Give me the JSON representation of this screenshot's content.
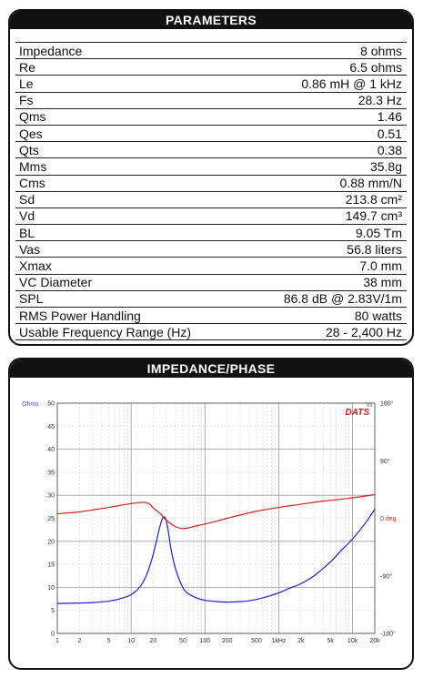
{
  "parameters": {
    "title": "PARAMETERS",
    "rows": [
      {
        "label": "Impedance",
        "value": "8 ohms"
      },
      {
        "label": "Re",
        "value": "6.5 ohms"
      },
      {
        "label": "Le",
        "value": "0.86 mH @ 1 kHz"
      },
      {
        "label": "Fs",
        "value": "28.3 Hz"
      },
      {
        "label": "Qms",
        "value": "1.46"
      },
      {
        "label": "Qes",
        "value": "0.51"
      },
      {
        "label": "Qts",
        "value": "0.38"
      },
      {
        "label": "Mms",
        "value": "35.8g"
      },
      {
        "label": "Cms",
        "value": "0.88 mm/N"
      },
      {
        "label": "Sd",
        "value": "213.8 cm²"
      },
      {
        "label": "Vd",
        "value": "149.7 cm³"
      },
      {
        "label": "BL",
        "value": "9.05 Tm"
      },
      {
        "label": "Vas",
        "value": "56.8 liters"
      },
      {
        "label": "Xmax",
        "value": "7.0 mm"
      },
      {
        "label": "VC Diameter",
        "value": "38 mm"
      },
      {
        "label": "SPL",
        "value": "86.8 dB @ 2.83V/1m"
      },
      {
        "label": "RMS Power Handling",
        "value": "80 watts"
      },
      {
        "label": "Usable Frequency Range (Hz)",
        "value": "28 - 2,400 Hz"
      }
    ]
  },
  "impedance_panel": {
    "title": "IMPEDANCE/PHASE",
    "brand": "DATS",
    "brand_version": "V3"
  },
  "colors": {
    "impedance": "#1f1fd0",
    "phase": "#d42020",
    "grid": "#bfbfbf",
    "ohms_label": "#4a4ae0",
    "deg_label": "#d42020"
  },
  "chart_data": {
    "type": "line",
    "xscale": "log",
    "xlim": [
      1,
      20000
    ],
    "ylim": [
      0,
      50
    ],
    "y2lim": [
      -180,
      180
    ],
    "ylabel": "Ohms",
    "xticks": [
      {
        "v": 1,
        "t": "1"
      },
      {
        "v": 2,
        "t": "2"
      },
      {
        "v": 5,
        "t": "5"
      },
      {
        "v": 10,
        "t": "10"
      },
      {
        "v": 20,
        "t": "20"
      },
      {
        "v": 50,
        "t": "50"
      },
      {
        "v": 100,
        "t": "100"
      },
      {
        "v": 200,
        "t": "200"
      },
      {
        "v": 500,
        "t": "500"
      },
      {
        "v": 1000,
        "t": "1kHz"
      },
      {
        "v": 2000,
        "t": "2k"
      },
      {
        "v": 5000,
        "t": "5k"
      },
      {
        "v": 10000,
        "t": "10k"
      },
      {
        "v": 20000,
        "t": "20k"
      }
    ],
    "yticks": [
      0,
      5,
      10,
      15,
      20,
      25,
      30,
      35,
      40,
      45,
      50
    ],
    "y2ticks": [
      {
        "v": 180,
        "t": "180°"
      },
      {
        "v": 90,
        "t": "90°"
      },
      {
        "v": 0,
        "t": "0 deg"
      },
      {
        "v": -90,
        "t": "-90°"
      },
      {
        "v": -180,
        "t": "-180°"
      }
    ],
    "series": [
      {
        "axis": "left",
        "x": [
          1,
          2,
          3,
          5,
          7,
          10,
          13,
          16,
          19,
          22,
          24,
          26,
          27,
          28,
          28.3,
          29,
          30,
          32,
          35,
          40,
          50,
          60,
          80,
          100,
          150,
          200,
          300,
          400,
          500,
          700,
          1000,
          1300,
          1500,
          2000,
          3000,
          5000,
          7000,
          10000,
          15000,
          20000
        ],
        "y": [
          6.5,
          6.6,
          6.7,
          7.0,
          7.5,
          8.4,
          10.0,
          12.5,
          16.0,
          20.0,
          22.6,
          24.6,
          25.1,
          25.3,
          25.3,
          25.1,
          24.5,
          22.0,
          18.0,
          14.0,
          10.0,
          8.6,
          7.6,
          7.2,
          6.9,
          6.8,
          6.9,
          7.1,
          7.4,
          8.0,
          8.8,
          9.6,
          10.0,
          10.8,
          12.5,
          15.5,
          18.0,
          20.5,
          24.0,
          27.0
        ]
      },
      {
        "axis": "right",
        "x": [
          1,
          2,
          3,
          5,
          7,
          10,
          15,
          18,
          20,
          25,
          30,
          40,
          50,
          60,
          70,
          100,
          150,
          200,
          300,
          500,
          1000,
          2000,
          3000,
          5000,
          10000,
          20000
        ],
        "y": [
          7,
          10,
          13,
          17,
          20,
          23,
          25,
          22,
          16,
          7,
          -3,
          -13,
          -16,
          -15,
          -13,
          -9,
          -4,
          0,
          5,
          11,
          17,
          22,
          25,
          28,
          32,
          37
        ]
      }
    ]
  }
}
